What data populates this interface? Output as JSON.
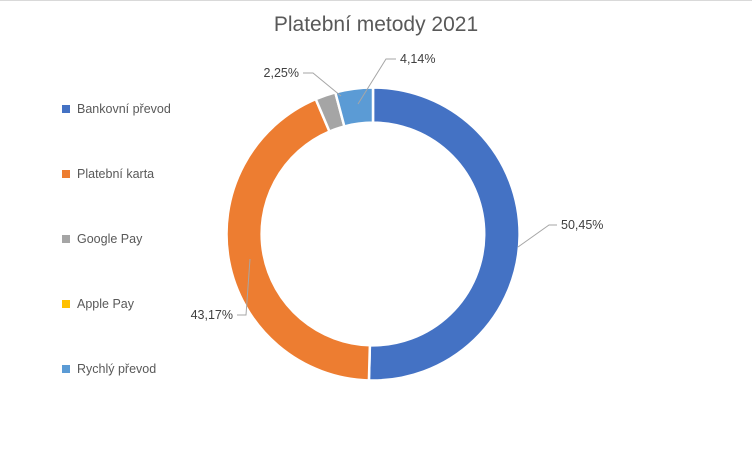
{
  "chart_data": {
    "type": "pie",
    "subtype": "doughnut",
    "title": "Platební metody 2021",
    "legend_position": "left",
    "hole_ratio": 0.76,
    "start_angle_deg": 0,
    "direction": "clockwise",
    "series": [
      {
        "name": "Bankovní převod",
        "value": 50.45,
        "label": "50,45%",
        "color": "#4472C4"
      },
      {
        "name": "Platební karta",
        "value": 43.17,
        "label": "43,17%",
        "color": "#ED7D31"
      },
      {
        "name": "Google Pay",
        "value": 2.25,
        "label": "2,25%",
        "color": "#A5A5A5"
      },
      {
        "name": "Apple Pay",
        "value": 0,
        "label": "",
        "color": "#FFC000"
      },
      {
        "name": "Rychlý převod",
        "value": 4.14,
        "label": "4,14%",
        "color": "#5B9BD5"
      }
    ],
    "label_color": "#404040",
    "leader_line_color": "#a6a6a6",
    "title_color": "#595959",
    "legend_text_color": "#595959"
  }
}
